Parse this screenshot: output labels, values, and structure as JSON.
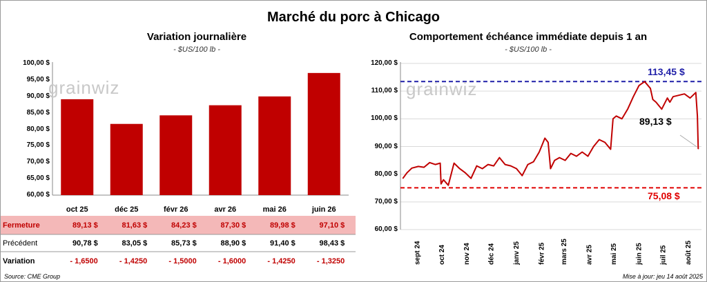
{
  "title": "Marché du porc à Chicago",
  "colors": {
    "bar": "#c00000",
    "line": "#c00000",
    "upper": "#1f1fa8",
    "lower": "#e00000",
    "fermeture_bg": "#f4b8b8"
  },
  "watermark": "grainwiz",
  "left": {
    "title": "Variation journalière",
    "unit": "- $US/100 lb -",
    "yticks": [
      "100,00 $",
      "95,00 $",
      "90,00 $",
      "85,00 $",
      "80,00 $",
      "75,00 $",
      "70,00 $",
      "65,00 $",
      "60,00 $"
    ],
    "table": {
      "fermeture_label": "Fermeture",
      "precedent_label": "Précédent",
      "variation_label": "Variation",
      "fermeture": [
        "89,13 $",
        "81,63 $",
        "84,23 $",
        "87,30 $",
        "89,98 $",
        "97,10 $"
      ],
      "precedent": [
        "90,78 $",
        "83,05 $",
        "85,73 $",
        "88,90 $",
        "91,40 $",
        "98,43 $"
      ],
      "variation": [
        "- 1,6500",
        "- 1,4250",
        "- 1,5000",
        "- 1,6000",
        "- 1,4250",
        "- 1,3250"
      ]
    }
  },
  "right": {
    "title": "Comportement échéance immédiate depuis 1 an",
    "unit": "- $US/100 lb -",
    "yticks": [
      "120,00 $",
      "110,00 $",
      "100,00 $",
      "90,00 $",
      "80,00 $",
      "70,00 $",
      "60,00 $"
    ],
    "upper_label": "113,45 $",
    "lower_label": "75,08 $",
    "last_label": "89,13 $"
  },
  "source": "Source: CME Group",
  "updated": "Mise à jour: jeu 14 août 2025",
  "chart_data": [
    {
      "type": "bar",
      "title": "Variation journalière",
      "ylabel": "- $US/100 lb -",
      "categories": [
        "oct 25",
        "déc 25",
        "févr 26",
        "avr 26",
        "mai 26",
        "juin 26"
      ],
      "values": [
        89.13,
        81.63,
        84.23,
        87.3,
        89.98,
        97.1
      ],
      "ylim": [
        60,
        100
      ],
      "grid": false
    },
    {
      "type": "line",
      "title": "Comportement échéance immédiate depuis 1 an",
      "ylabel": "- $US/100 lb -",
      "xlabels": [
        "sept 24",
        "oct 24",
        "nov 24",
        "déc 24",
        "janv 25",
        "févr 25",
        "mars 25",
        "avr 25",
        "mai 25",
        "juin 25",
        "juil 25",
        "août 25"
      ],
      "ylim": [
        60,
        120
      ],
      "reference_lines": [
        113.45,
        75.08
      ],
      "x": [
        "2024-08-15",
        "2024-08-20",
        "2024-08-26",
        "2024-09-03",
        "2024-09-10",
        "2024-09-17",
        "2024-09-24",
        "2024-09-30",
        "2024-10-01",
        "2024-10-04",
        "2024-10-10",
        "2024-10-17",
        "2024-10-24",
        "2024-10-31",
        "2024-11-07",
        "2024-11-14",
        "2024-11-21",
        "2024-11-28",
        "2024-12-05",
        "2024-12-12",
        "2024-12-19",
        "2024-12-26",
        "2025-01-02",
        "2025-01-09",
        "2025-01-16",
        "2025-01-23",
        "2025-01-30",
        "2025-02-06",
        "2025-02-10",
        "2025-02-13",
        "2025-02-18",
        "2025-02-24",
        "2025-03-03",
        "2025-03-10",
        "2025-03-17",
        "2025-03-24",
        "2025-03-31",
        "2025-04-07",
        "2025-04-14",
        "2025-04-21",
        "2025-04-28",
        "2025-05-01",
        "2025-05-05",
        "2025-05-12",
        "2025-05-19",
        "2025-05-26",
        "2025-06-02",
        "2025-06-09",
        "2025-06-16",
        "2025-06-19",
        "2025-06-23",
        "2025-06-30",
        "2025-07-07",
        "2025-07-10",
        "2025-07-14",
        "2025-07-21",
        "2025-07-28",
        "2025-08-04",
        "2025-08-11",
        "2025-08-13",
        "2025-08-14"
      ],
      "values": [
        78.5,
        80.5,
        82.2,
        82.8,
        82.5,
        84.2,
        83.5,
        84.0,
        76.5,
        78.0,
        76.0,
        84.0,
        82.0,
        80.5,
        78.5,
        83.0,
        82.0,
        83.5,
        83.0,
        86.0,
        83.5,
        83.0,
        82.0,
        79.5,
        83.5,
        84.5,
        88.0,
        93.0,
        91.5,
        82.0,
        85.0,
        86.0,
        85.0,
        87.5,
        86.5,
        88.0,
        86.5,
        90.0,
        92.5,
        91.5,
        89.0,
        100.0,
        101.0,
        100.0,
        103.5,
        108.0,
        112.0,
        113.45,
        111.0,
        107.0,
        106.0,
        103.5,
        107.5,
        106.0,
        108.0,
        108.5,
        109.0,
        107.5,
        109.5,
        101.0,
        89.13
      ]
    }
  ]
}
